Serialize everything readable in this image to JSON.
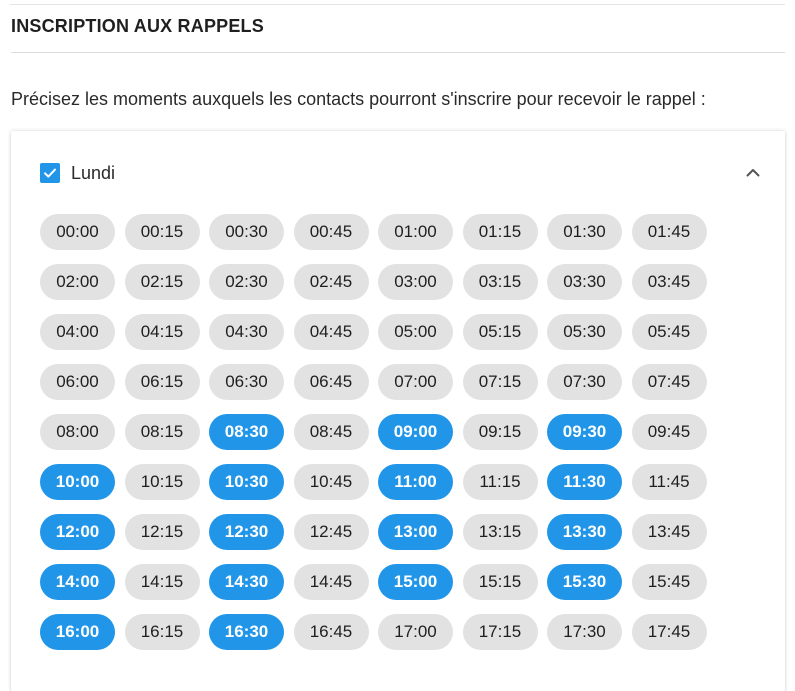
{
  "section": {
    "title": "INSCRIPTION AUX RAPPELS",
    "description": "Précisez les moments auxquels les contacts pourront s'inscrire pour recevoir le rappel :"
  },
  "day": {
    "label": "Lundi",
    "checked": true,
    "expanded": true
  },
  "colors": {
    "accent": "#2196e8",
    "slot_inactive": "#e2e2e2"
  },
  "slots": [
    {
      "time": "00:00",
      "selected": false
    },
    {
      "time": "00:15",
      "selected": false
    },
    {
      "time": "00:30",
      "selected": false
    },
    {
      "time": "00:45",
      "selected": false
    },
    {
      "time": "01:00",
      "selected": false
    },
    {
      "time": "01:15",
      "selected": false
    },
    {
      "time": "01:30",
      "selected": false
    },
    {
      "time": "01:45",
      "selected": false
    },
    {
      "time": "02:00",
      "selected": false
    },
    {
      "time": "02:15",
      "selected": false
    },
    {
      "time": "02:30",
      "selected": false
    },
    {
      "time": "02:45",
      "selected": false
    },
    {
      "time": "03:00",
      "selected": false
    },
    {
      "time": "03:15",
      "selected": false
    },
    {
      "time": "03:30",
      "selected": false
    },
    {
      "time": "03:45",
      "selected": false
    },
    {
      "time": "04:00",
      "selected": false
    },
    {
      "time": "04:15",
      "selected": false
    },
    {
      "time": "04:30",
      "selected": false
    },
    {
      "time": "04:45",
      "selected": false
    },
    {
      "time": "05:00",
      "selected": false
    },
    {
      "time": "05:15",
      "selected": false
    },
    {
      "time": "05:30",
      "selected": false
    },
    {
      "time": "05:45",
      "selected": false
    },
    {
      "time": "06:00",
      "selected": false
    },
    {
      "time": "06:15",
      "selected": false
    },
    {
      "time": "06:30",
      "selected": false
    },
    {
      "time": "06:45",
      "selected": false
    },
    {
      "time": "07:00",
      "selected": false
    },
    {
      "time": "07:15",
      "selected": false
    },
    {
      "time": "07:30",
      "selected": false
    },
    {
      "time": "07:45",
      "selected": false
    },
    {
      "time": "08:00",
      "selected": false
    },
    {
      "time": "08:15",
      "selected": false
    },
    {
      "time": "08:30",
      "selected": true
    },
    {
      "time": "08:45",
      "selected": false
    },
    {
      "time": "09:00",
      "selected": true
    },
    {
      "time": "09:15",
      "selected": false
    },
    {
      "time": "09:30",
      "selected": true
    },
    {
      "time": "09:45",
      "selected": false
    },
    {
      "time": "10:00",
      "selected": true
    },
    {
      "time": "10:15",
      "selected": false
    },
    {
      "time": "10:30",
      "selected": true
    },
    {
      "time": "10:45",
      "selected": false
    },
    {
      "time": "11:00",
      "selected": true
    },
    {
      "time": "11:15",
      "selected": false
    },
    {
      "time": "11:30",
      "selected": true
    },
    {
      "time": "11:45",
      "selected": false
    },
    {
      "time": "12:00",
      "selected": true
    },
    {
      "time": "12:15",
      "selected": false
    },
    {
      "time": "12:30",
      "selected": true
    },
    {
      "time": "12:45",
      "selected": false
    },
    {
      "time": "13:00",
      "selected": true
    },
    {
      "time": "13:15",
      "selected": false
    },
    {
      "time": "13:30",
      "selected": true
    },
    {
      "time": "13:45",
      "selected": false
    },
    {
      "time": "14:00",
      "selected": true
    },
    {
      "time": "14:15",
      "selected": false
    },
    {
      "time": "14:30",
      "selected": true
    },
    {
      "time": "14:45",
      "selected": false
    },
    {
      "time": "15:00",
      "selected": true
    },
    {
      "time": "15:15",
      "selected": false
    },
    {
      "time": "15:30",
      "selected": true
    },
    {
      "time": "15:45",
      "selected": false
    },
    {
      "time": "16:00",
      "selected": true
    },
    {
      "time": "16:15",
      "selected": false
    },
    {
      "time": "16:30",
      "selected": true
    },
    {
      "time": "16:45",
      "selected": false
    },
    {
      "time": "17:00",
      "selected": false
    },
    {
      "time": "17:15",
      "selected": false
    },
    {
      "time": "17:30",
      "selected": false
    },
    {
      "time": "17:45",
      "selected": false
    }
  ]
}
